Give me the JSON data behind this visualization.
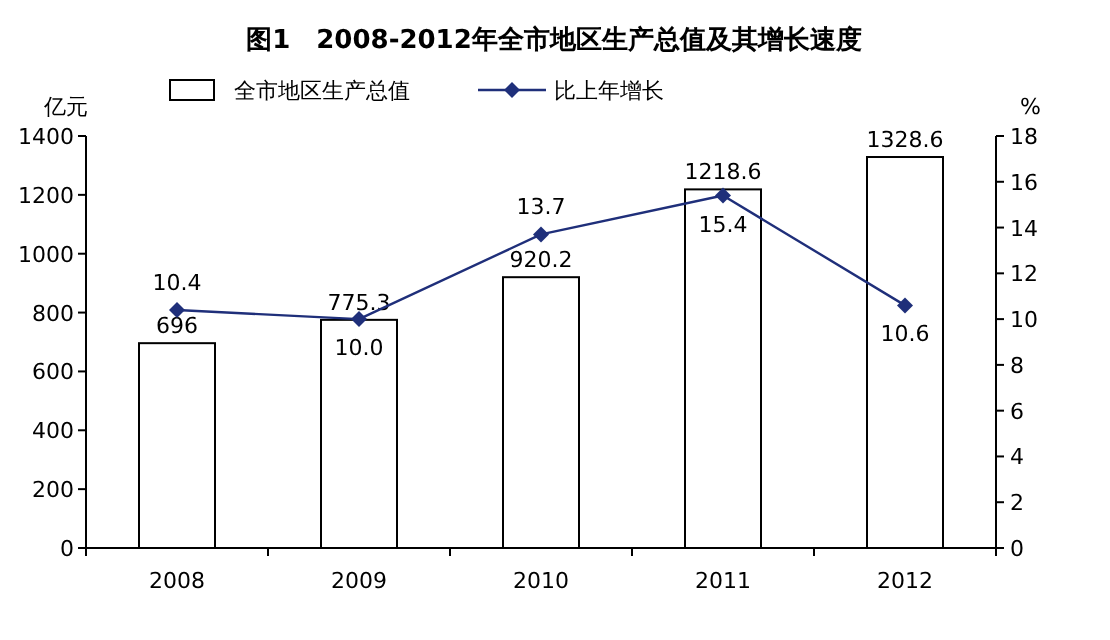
{
  "chart_data": {
    "type": "bar",
    "title": "图1　2008-2012年全市地区生产总值及其增长速度",
    "ylabel": "亿元",
    "y2label": "%",
    "categories": [
      "2008",
      "2009",
      "2010",
      "2011",
      "2012"
    ],
    "series": [
      {
        "name": "全市地区生产总值",
        "color": "#ffffff",
        "values": [
          696,
          775.3,
          920.2,
          1218.6,
          1328.6
        ]
      },
      {
        "name": "比上年增长",
        "type": "line",
        "axis": "y2",
        "color": "#1f2f7a",
        "marker": "diamond",
        "values": [
          10.4,
          10.0,
          13.7,
          15.4,
          10.6
        ],
        "value_labels": [
          "10.4",
          "10.0",
          "13.7",
          "15.4",
          "10.6"
        ]
      }
    ],
    "ylim": [
      0,
      1400
    ],
    "yticks": [
      0,
      200,
      400,
      600,
      800,
      1000,
      1200,
      1400
    ],
    "y2lim": [
      0,
      18
    ],
    "y2ticks": [
      0,
      2,
      4,
      6,
      8,
      10,
      12,
      14,
      16,
      18
    ],
    "data_labels": true,
    "legend": "top",
    "grid": false
  }
}
